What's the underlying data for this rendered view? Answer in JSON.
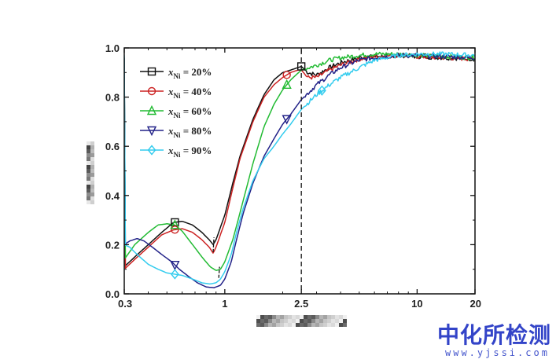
{
  "chart_data": {
    "type": "line",
    "title": "",
    "xlabel": "",
    "ylabel": "",
    "xscale": "log",
    "xlim": [
      0.3,
      20
    ],
    "ylim": [
      0.0,
      1.0
    ],
    "x_ticks": [
      0.3,
      1,
      2.5,
      10,
      20
    ],
    "x_tick_labels": [
      "0.3",
      "1",
      "2.5",
      "10",
      "20"
    ],
    "y_ticks": [
      0.0,
      0.2,
      0.4,
      0.6,
      0.8,
      1.0
    ],
    "y_tick_labels": [
      "0.0",
      "0.2",
      "0.4",
      "0.6",
      "0.8",
      "1.0"
    ],
    "grid": false,
    "legend_position": "top-left",
    "reference_line_x": 2.5,
    "series": [
      {
        "name_var": "x",
        "name_sub": "Ni",
        "name_rest": " = 20%",
        "color": "#111111",
        "marker": "square",
        "x": [
          0.3,
          0.34,
          0.4,
          0.47,
          0.54,
          0.6,
          0.68,
          0.76,
          0.83,
          0.87,
          0.9,
          1.0,
          1.1,
          1.2,
          1.4,
          1.6,
          1.8,
          2.0,
          2.2,
          2.4,
          2.5,
          2.7,
          3.0,
          3.5,
          4.0,
          5.0,
          6.0,
          8.0,
          10,
          14,
          20
        ],
        "y": [
          0.11,
          0.15,
          0.2,
          0.25,
          0.29,
          0.295,
          0.28,
          0.25,
          0.22,
          0.2,
          0.22,
          0.32,
          0.45,
          0.56,
          0.71,
          0.81,
          0.87,
          0.9,
          0.91,
          0.92,
          0.925,
          0.9,
          0.89,
          0.92,
          0.94,
          0.96,
          0.965,
          0.97,
          0.965,
          0.96,
          0.955
        ],
        "marker_x": [
          0.55,
          2.5
        ]
      },
      {
        "name_var": "x",
        "name_sub": "Ni",
        "name_rest": " = 40%",
        "color": "#cc2222",
        "marker": "circle",
        "x": [
          0.3,
          0.34,
          0.4,
          0.47,
          0.54,
          0.6,
          0.68,
          0.76,
          0.83,
          0.87,
          0.9,
          1.0,
          1.1,
          1.2,
          1.4,
          1.6,
          1.8,
          2.0,
          2.2,
          2.4,
          2.5,
          2.7,
          3.0,
          3.5,
          4.0,
          5.0,
          6.0,
          8.0,
          10,
          14,
          20
        ],
        "y": [
          0.1,
          0.14,
          0.19,
          0.24,
          0.26,
          0.265,
          0.25,
          0.22,
          0.19,
          0.165,
          0.19,
          0.29,
          0.43,
          0.55,
          0.7,
          0.8,
          0.85,
          0.88,
          0.9,
          0.91,
          0.91,
          0.88,
          0.88,
          0.91,
          0.93,
          0.955,
          0.965,
          0.97,
          0.965,
          0.96,
          0.955
        ],
        "marker_x": [
          0.55,
          2.1
        ]
      },
      {
        "name_var": "x",
        "name_sub": "Ni",
        "name_rest": " = 60%",
        "color": "#22bb33",
        "marker": "triangle-up",
        "x": [
          0.3,
          0.34,
          0.4,
          0.45,
          0.5,
          0.55,
          0.6,
          0.68,
          0.76,
          0.84,
          0.9,
          0.95,
          1.0,
          1.1,
          1.2,
          1.4,
          1.6,
          1.8,
          2.0,
          2.2,
          2.5,
          3.0,
          3.5,
          4.0,
          5.0,
          6.0,
          8.0,
          10,
          14,
          20
        ],
        "y": [
          0.14,
          0.2,
          0.25,
          0.28,
          0.285,
          0.28,
          0.255,
          0.2,
          0.15,
          0.11,
          0.095,
          0.1,
          0.13,
          0.22,
          0.33,
          0.53,
          0.68,
          0.77,
          0.83,
          0.87,
          0.91,
          0.93,
          0.95,
          0.96,
          0.97,
          0.975,
          0.975,
          0.97,
          0.965,
          0.96
        ],
        "marker_x": [
          0.55,
          2.1
        ]
      },
      {
        "name_var": "x",
        "name_sub": "Ni",
        "name_rest": " = 80%",
        "color": "#222288",
        "marker": "triangle-down",
        "x": [
          0.3,
          0.32,
          0.35,
          0.38,
          0.42,
          0.47,
          0.53,
          0.58,
          0.65,
          0.72,
          0.8,
          0.88,
          0.95,
          1.0,
          1.08,
          1.15,
          1.25,
          1.4,
          1.6,
          1.8,
          2.0,
          2.2,
          2.5,
          3.0,
          3.5,
          4.0,
          5.0,
          6.0,
          8.0,
          10,
          14,
          20
        ],
        "y": [
          0.2,
          0.215,
          0.225,
          0.215,
          0.19,
          0.16,
          0.13,
          0.1,
          0.07,
          0.045,
          0.028,
          0.025,
          0.035,
          0.06,
          0.13,
          0.22,
          0.33,
          0.45,
          0.56,
          0.63,
          0.69,
          0.73,
          0.79,
          0.85,
          0.89,
          0.92,
          0.95,
          0.96,
          0.97,
          0.97,
          0.965,
          0.96
        ],
        "marker_x": [
          0.55,
          2.1
        ]
      },
      {
        "name_var": "x",
        "name_sub": "Ni",
        "name_rest": " = 90%",
        "color": "#33ccee",
        "marker": "diamond",
        "x": [
          0.3,
          0.32,
          0.35,
          0.4,
          0.45,
          0.5,
          0.55,
          0.6,
          0.68,
          0.76,
          0.84,
          0.9,
          0.95,
          1.0,
          1.08,
          1.15,
          1.25,
          1.4,
          1.6,
          1.8,
          2.0,
          2.2,
          2.5,
          3.0,
          3.5,
          4.0,
          5.0,
          6.0,
          8.0,
          10,
          14,
          20
        ],
        "y": [
          0.2,
          0.19,
          0.16,
          0.12,
          0.1,
          0.085,
          0.08,
          0.075,
          0.06,
          0.045,
          0.04,
          0.045,
          0.06,
          0.09,
          0.16,
          0.25,
          0.35,
          0.46,
          0.55,
          0.6,
          0.65,
          0.69,
          0.75,
          0.81,
          0.85,
          0.88,
          0.92,
          0.95,
          0.97,
          0.975,
          0.975,
          0.97
        ],
        "marker_x": [
          0.55,
          3.2
        ]
      }
    ],
    "dashed_markers": [
      {
        "x": 0.87,
        "y_from": 0.17,
        "y_to": 0.23
      },
      {
        "x": 0.93,
        "y_from": 0.065,
        "y_to": 0.11
      }
    ]
  },
  "watermark": {
    "text": "中化所检测",
    "url": "www.yjssi.com"
  }
}
